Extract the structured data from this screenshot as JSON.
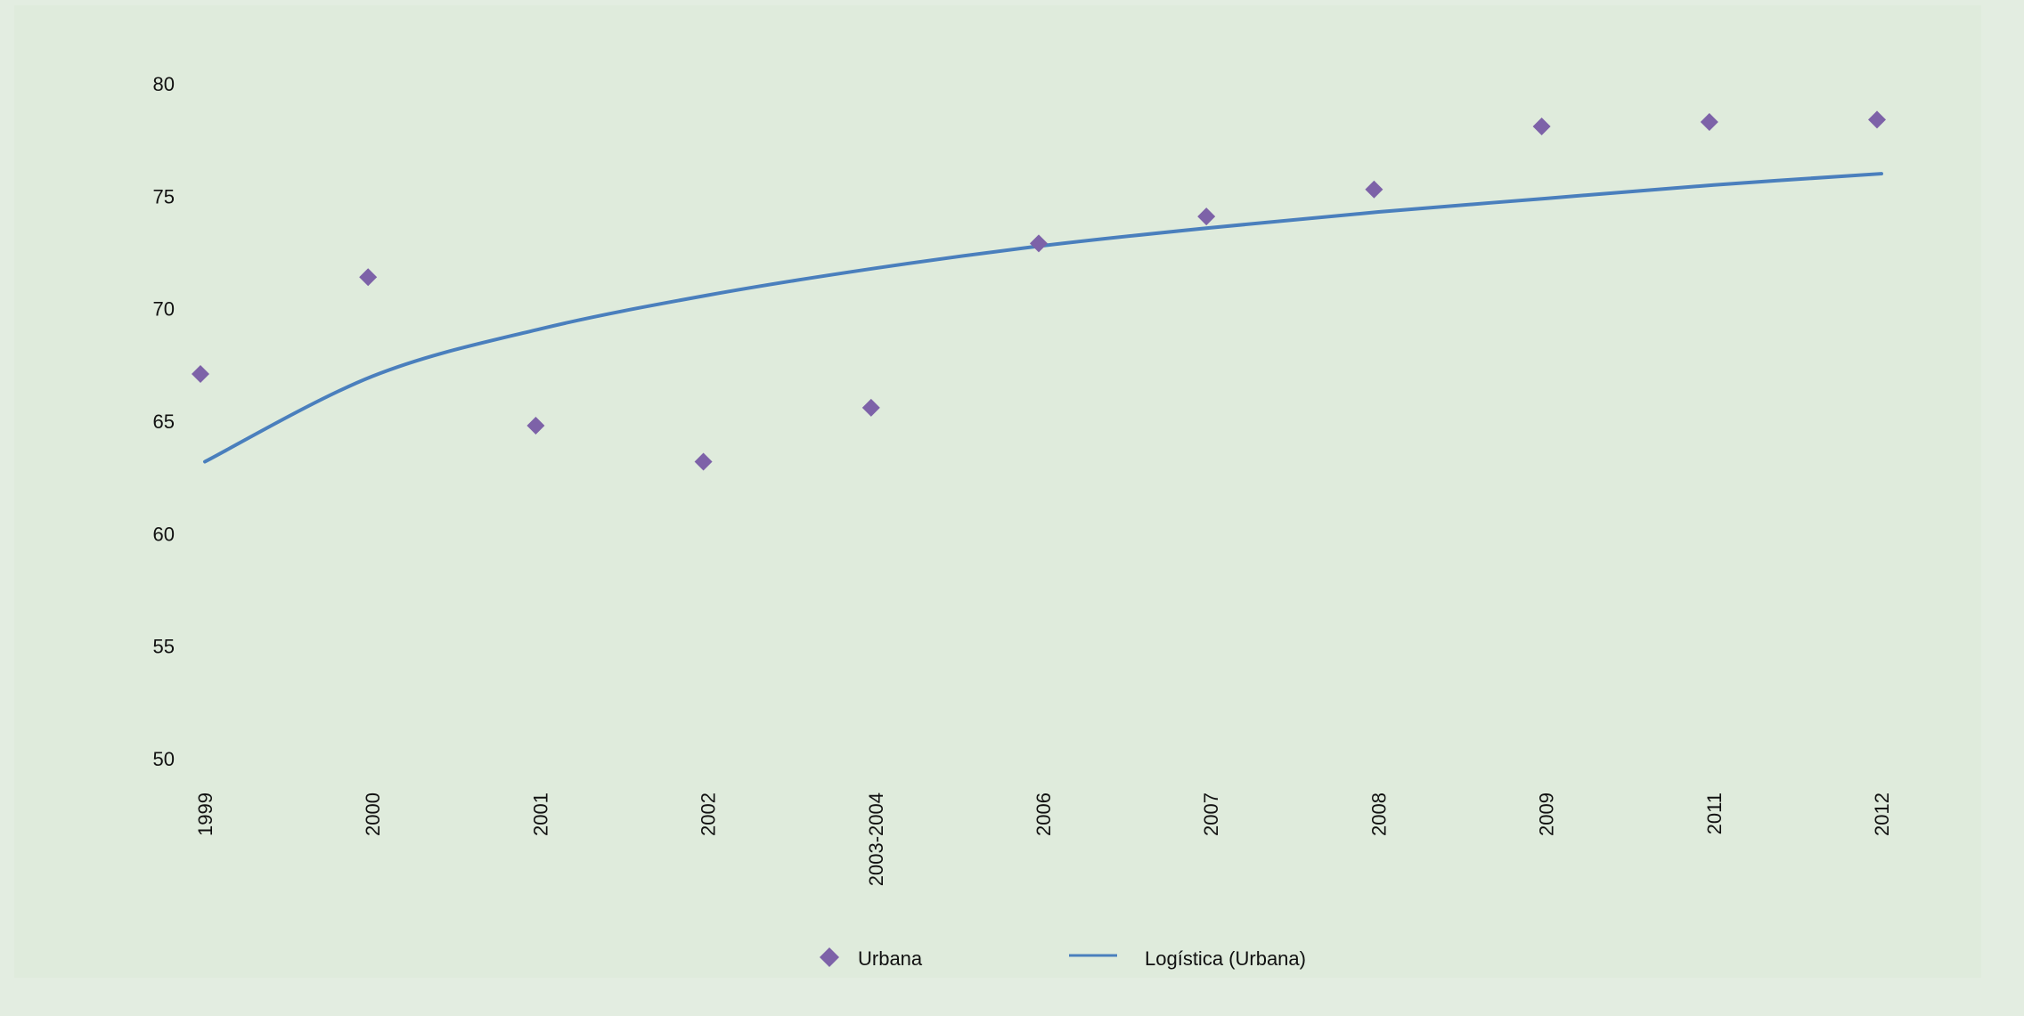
{
  "colors": {
    "background": "#dfebdc",
    "outer_background": "#e3ede1",
    "marker": "#7d62a8",
    "trendline": "#4a7fbd",
    "text": "#111111"
  },
  "chart_data": {
    "type": "scatter",
    "title": "",
    "xlabel": "",
    "ylabel": "",
    "categories": [
      "1999",
      "2000",
      "2001",
      "2002",
      "2003-2004",
      "2006",
      "2007",
      "2008",
      "2009",
      "2011",
      "2012"
    ],
    "ylim": [
      50,
      80
    ],
    "yticks": [
      50,
      55,
      60,
      65,
      70,
      75,
      80
    ],
    "grid": false,
    "legend_position": "bottom",
    "series": [
      {
        "name": "Urbana",
        "kind": "marker",
        "marker": "diamond",
        "color": "#7d62a8",
        "values": [
          67.1,
          71.4,
          64.8,
          63.2,
          65.6,
          72.9,
          74.1,
          75.3,
          78.1,
          78.3,
          78.4
        ]
      },
      {
        "name": "Logística (Urbana)",
        "kind": "line",
        "color": "#4a7fbd",
        "values": [
          63.2,
          67.0,
          69.1,
          70.6,
          71.8,
          72.8,
          73.6,
          74.3,
          74.9,
          75.5,
          76.0
        ]
      }
    ],
    "legend": [
      "Urbana",
      "Logística (Urbana)"
    ]
  }
}
